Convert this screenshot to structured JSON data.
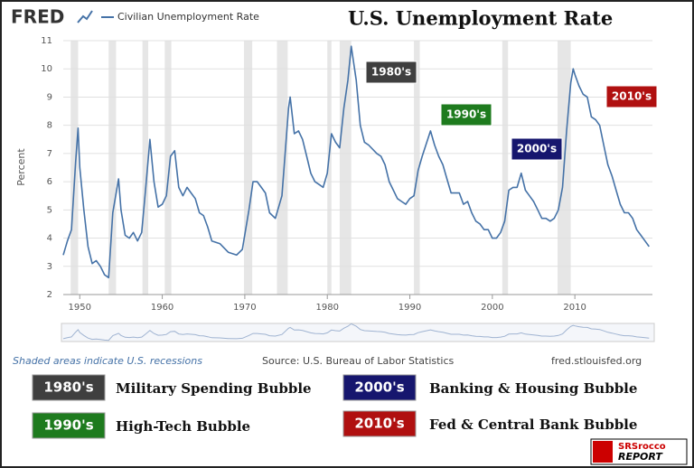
{
  "chart_data": {
    "type": "line",
    "brand": "FRED",
    "title": "U.S. Unemployment Rate",
    "y_label": "Percent",
    "series": [
      {
        "name": "Civilian Unemployment Rate",
        "color": "#4572a7",
        "values": [
          3.4,
          3.9,
          4.3,
          6.7,
          7.9,
          6.5,
          5.0,
          3.7,
          3.1,
          3.2,
          3.0,
          2.7,
          2.6,
          4.9,
          6.1,
          5.0,
          4.1,
          4.0,
          4.2,
          3.9,
          4.2,
          5.8,
          7.5,
          6.0,
          5.1,
          5.2,
          5.5,
          6.9,
          7.1,
          5.8,
          5.5,
          5.8,
          5.6,
          5.4,
          4.9,
          4.8,
          4.4,
          3.9,
          3.8,
          3.5,
          3.4,
          3.6,
          5.0,
          6.0,
          6.0,
          5.8,
          5.6,
          4.9,
          4.7,
          5.5,
          8.6,
          9.0,
          7.7,
          7.8,
          7.5,
          6.9,
          6.3,
          6.0,
          5.9,
          5.8,
          6.3,
          7.7,
          7.4,
          7.2,
          8.6,
          9.6,
          10.8,
          9.6,
          8.0,
          7.4,
          7.3,
          7.0,
          6.9,
          6.6,
          6.0,
          5.7,
          5.4,
          5.3,
          5.2,
          5.4,
          5.5,
          6.4,
          6.9,
          7.8,
          7.3,
          6.9,
          6.6,
          6.1,
          5.6,
          5.6,
          5.2,
          5.3,
          4.9,
          4.6,
          4.5,
          4.3,
          4.3,
          4.0,
          4.0,
          4.2,
          4.6,
          5.7,
          5.8,
          5.8,
          6.3,
          5.7,
          5.5,
          5.3,
          5.0,
          4.7,
          4.7,
          4.6,
          4.7,
          5.0,
          5.8,
          7.8,
          9.5,
          10.0,
          9.8,
          9.4,
          9.1,
          9.0,
          8.3,
          8.2,
          8.0,
          7.3,
          6.6,
          6.2,
          5.7,
          5.2,
          4.9,
          4.9,
          4.7,
          4.3,
          4.1,
          3.9,
          3.7
        ]
      }
    ],
    "x": [
      1948.0,
      1948.5,
      1949.0,
      1949.5,
      1949.8,
      1950.0,
      1950.5,
      1951.0,
      1951.5,
      1952.0,
      1952.5,
      1953.0,
      1953.5,
      1954.0,
      1954.7,
      1955.0,
      1955.5,
      1956.0,
      1956.5,
      1957.0,
      1957.5,
      1958.0,
      1958.5,
      1959.0,
      1959.5,
      1960.0,
      1960.5,
      1961.0,
      1961.5,
      1962.0,
      1962.5,
      1963.0,
      1963.5,
      1964.0,
      1964.5,
      1965.0,
      1965.5,
      1966.0,
      1967.0,
      1968.0,
      1969.0,
      1969.7,
      1970.5,
      1971.0,
      1971.5,
      1972.0,
      1972.5,
      1973.0,
      1973.7,
      1974.5,
      1975.3,
      1975.5,
      1976.0,
      1976.5,
      1977.0,
      1977.5,
      1978.0,
      1978.5,
      1979.0,
      1979.5,
      1980.0,
      1980.5,
      1981.0,
      1981.5,
      1982.0,
      1982.5,
      1982.9,
      1983.5,
      1984.0,
      1984.5,
      1985.0,
      1986.0,
      1986.5,
      1987.0,
      1987.5,
      1988.0,
      1988.5,
      1989.0,
      1989.5,
      1990.0,
      1990.5,
      1991.0,
      1991.5,
      1992.5,
      1993.0,
      1993.5,
      1994.0,
      1994.5,
      1995.0,
      1996.0,
      1996.5,
      1997.0,
      1997.5,
      1998.0,
      1998.5,
      1999.0,
      1999.5,
      2000.0,
      2000.5,
      2001.0,
      2001.5,
      2002.0,
      2002.5,
      2003.0,
      2003.5,
      2004.0,
      2004.5,
      2005.0,
      2005.5,
      2006.0,
      2006.5,
      2007.0,
      2007.5,
      2008.0,
      2008.5,
      2009.0,
      2009.5,
      2009.8,
      2010.0,
      2010.5,
      2011.0,
      2011.5,
      2012.0,
      2012.5,
      2013.0,
      2013.5,
      2014.0,
      2014.5,
      2015.0,
      2015.5,
      2016.0,
      2016.5,
      2017.0,
      2017.5,
      2018.0,
      2018.5,
      2019.0
    ],
    "xlim": [
      1948,
      2019.4
    ],
    "xticks": [
      1950,
      1960,
      1970,
      1980,
      1990,
      2000,
      2010
    ],
    "ylim": [
      2,
      11
    ],
    "yticks": [
      2,
      3,
      4,
      5,
      6,
      7,
      8,
      9,
      10,
      11
    ],
    "grid": true,
    "recessions": [
      [
        1948.9,
        1949.8
      ],
      [
        1953.5,
        1954.4
      ],
      [
        1957.6,
        1958.3
      ],
      [
        1960.3,
        1961.1
      ],
      [
        1969.9,
        1970.9
      ],
      [
        1973.9,
        1975.2
      ],
      [
        1980.0,
        1980.5
      ],
      [
        1981.5,
        1982.9
      ],
      [
        1990.5,
        1991.2
      ],
      [
        2001.2,
        2001.9
      ],
      [
        2007.9,
        2009.5
      ]
    ],
    "annotations": [
      {
        "label": "1980's",
        "color": "#3f3f3f",
        "note": "Military Spending Bubble"
      },
      {
        "label": "1990's",
        "color": "#1e7b1e",
        "note": "High-Tech Bubble"
      },
      {
        "label": "2000's",
        "color": "#16166e",
        "note": "Banking & Housing Bubble"
      },
      {
        "label": "2010's",
        "color": "#b01010",
        "note": "Fed & Central Bank Bubble"
      }
    ],
    "footer_note": "Shaded areas indicate U.S. recessions",
    "source": "Source: U.S. Bureau of Labor Statistics",
    "url": "fred.stlouisfed.org",
    "logo": [
      "SRSrocco",
      "REPORT"
    ]
  }
}
